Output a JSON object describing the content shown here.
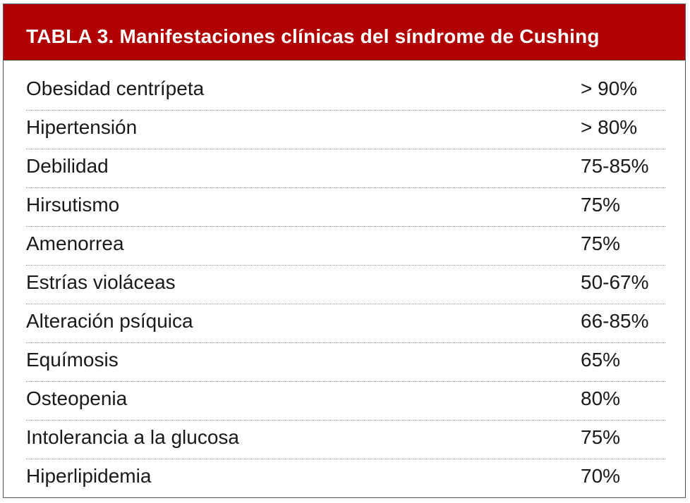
{
  "table": {
    "title": "TABLA 3. Manifestaciones clínicas del síndrome de Cushing",
    "header_color": "#b00000",
    "rows": [
      {
        "label": "Obesidad centrípeta",
        "value": "> 90%"
      },
      {
        "label": "Hipertensión",
        "value": "> 80%"
      },
      {
        "label": "Debilidad",
        "value": "75-85%"
      },
      {
        "label": "Hirsutismo",
        "value": "75%"
      },
      {
        "label": "Amenorrea",
        "value": "75%"
      },
      {
        "label": "Estrías violáceas",
        "value": "50-67%"
      },
      {
        "label": "Alteración psíquica",
        "value": "66-85%"
      },
      {
        "label": "Equímosis",
        "value": "65%"
      },
      {
        "label": "Osteopenia",
        "value": "80%"
      },
      {
        "label": "Intolerancia a la glucosa",
        "value": "75%"
      },
      {
        "label": "Hiperlipidemia",
        "value": "70%"
      }
    ]
  }
}
